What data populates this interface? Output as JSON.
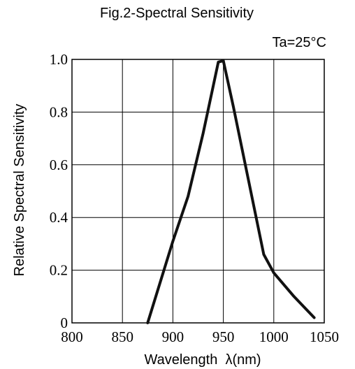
{
  "chart_data": {
    "type": "line",
    "title": "Fig.2-Spectral Sensitivity",
    "subtitle": "Ta=25°C",
    "xlabel": "Wavelength  λ(nm)",
    "ylabel": "Relative Spectral Sensitivity",
    "xlim": [
      800,
      1050
    ],
    "ylim": [
      0,
      1.0
    ],
    "x_ticks": [
      "800",
      "850",
      "900",
      "950",
      "1000",
      "1050"
    ],
    "y_ticks": [
      "0",
      "0.2",
      "0.4",
      "0.6",
      "0.8",
      "1.0"
    ],
    "grid": true,
    "legend": "none",
    "series": [
      {
        "color": "#111111",
        "x": [
          875,
          900,
          915,
          930,
          940,
          945,
          950,
          960,
          975,
          990,
          1000,
          1020,
          1040
        ],
        "y": [
          0,
          0.31,
          0.48,
          0.72,
          0.9,
          0.99,
          0.995,
          0.82,
          0.54,
          0.26,
          0.19,
          0.1,
          0.02
        ]
      }
    ]
  }
}
